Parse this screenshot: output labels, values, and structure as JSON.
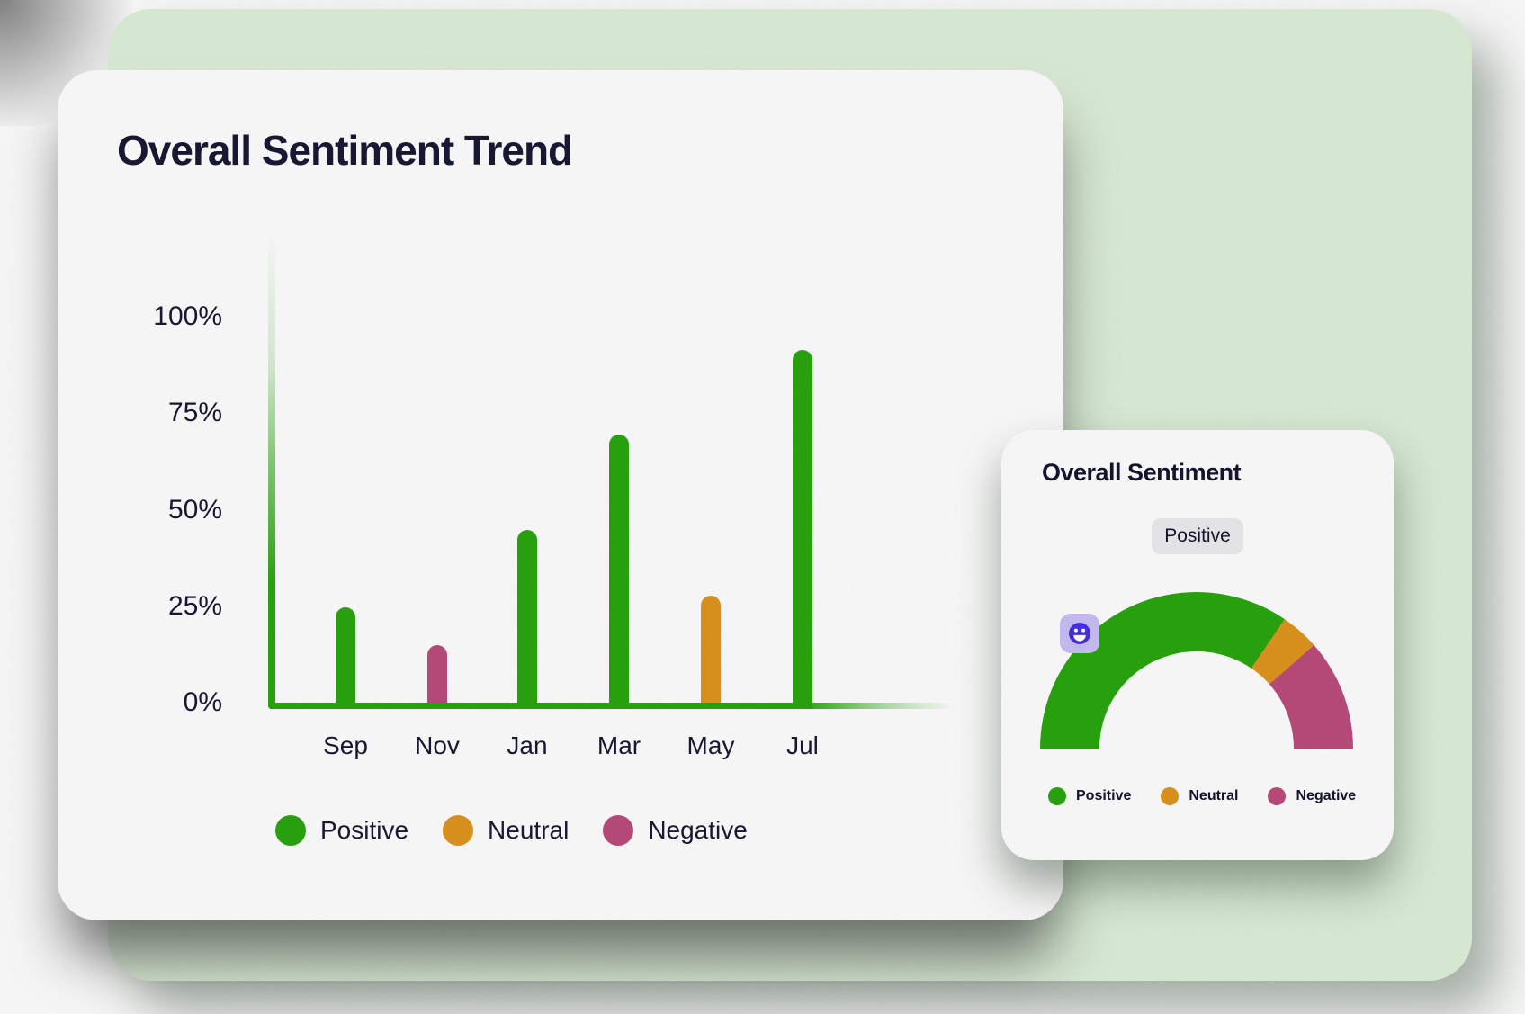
{
  "colors": {
    "page_bg": "#ffffff",
    "panel_bg": "#def0da",
    "card_bg": "#ffffff",
    "text": "#191935",
    "positive": "#2aa70f",
    "neutral": "#e0961f",
    "negative": "#bc4d7d",
    "badge_bg": "#ededf0",
    "icon_bg": "#cbc0f8",
    "icon_face": "#4730e4"
  },
  "trend_card": {
    "title": "Overall Sentiment Trend",
    "y_tick_labels": [
      "100%",
      "75%",
      "50%",
      "25%",
      "0%"
    ],
    "x_tick_labels": [
      "Sep",
      "Nov",
      "Jan",
      "Mar",
      "May",
      "Jul"
    ],
    "legend": [
      {
        "label": "Positive",
        "color_key": "positive"
      },
      {
        "label": "Neutral",
        "color_key": "neutral"
      },
      {
        "label": "Negative",
        "color_key": "negative"
      }
    ]
  },
  "gauge_card": {
    "title": "Overall Sentiment",
    "badge_label": "Positive",
    "icon": "smiley-face-icon",
    "legend": [
      {
        "label": "Positive",
        "color_key": "positive"
      },
      {
        "label": "Neutral",
        "color_key": "neutral"
      },
      {
        "label": "Negative",
        "color_key": "negative"
      }
    ]
  },
  "chart_data": [
    {
      "type": "bar",
      "title": "Overall Sentiment Trend",
      "categories": [
        "Sep",
        "Nov",
        "Jan",
        "Mar",
        "May",
        "Jul"
      ],
      "values": [
        25,
        15,
        45,
        70,
        28,
        92
      ],
      "value_sentiments": [
        "Positive",
        "Negative",
        "Positive",
        "Positive",
        "Neutral",
        "Positive"
      ],
      "xlabel": "",
      "ylabel": "",
      "ylim": [
        0,
        100
      ],
      "y_ticks": [
        0,
        25,
        50,
        75,
        100
      ],
      "y_tick_format": "percent",
      "grid": false,
      "legend_entries": [
        "Positive",
        "Neutral",
        "Negative"
      ],
      "legend_position": "bottom"
    },
    {
      "type": "pie",
      "subtype": "semicircle-gauge",
      "title": "Overall Sentiment",
      "categories": [
        "Positive",
        "Neutral",
        "Negative"
      ],
      "values": [
        69,
        8,
        23
      ],
      "overall_label": "Positive",
      "legend_entries": [
        "Positive",
        "Neutral",
        "Negative"
      ],
      "legend_position": "bottom"
    }
  ]
}
